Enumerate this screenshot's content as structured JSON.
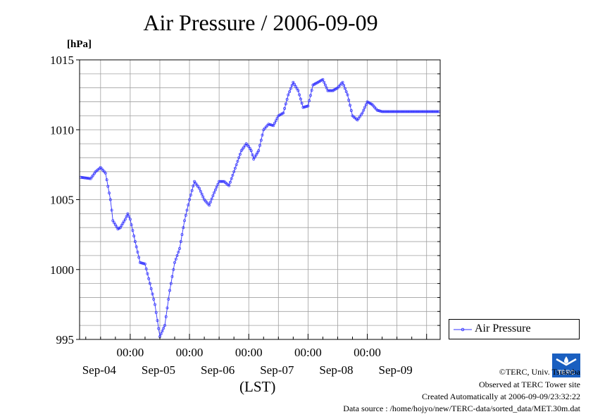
{
  "title": "Air Pressure / 2006-09-09",
  "y_unit": "[hPa]",
  "x_axis_label": "(LST)",
  "legend": {
    "label": "Air Pressure",
    "placement": "right"
  },
  "credits": {
    "copyright": "©TERC, Univ. Tsukuba",
    "observed": "Observed at TERC Tower site",
    "created": "Created Automatically at 2006-09-09/23:32:22",
    "source": "Data source : /home/hojyo/new/TERC-data/sorted_data/MET.30m.dat"
  },
  "logo": {
    "text": "TERC",
    "color": "#1a5fc0"
  },
  "chart_data": {
    "type": "line",
    "title": "Air Pressure / 2006-09-09",
    "ylabel": "[hPa]",
    "xlabel": "(LST)",
    "ylim": [
      995,
      1015
    ],
    "yticks": [
      995,
      1000,
      1005,
      1010,
      1015
    ],
    "xlim_hours": [
      -20.5,
      125.5
    ],
    "time_ticks": [
      "00:00",
      "00:00",
      "00:00",
      "00:00",
      "00:00"
    ],
    "day_labels": [
      "Sep-04",
      "Sep-05",
      "Sep-06",
      "Sep-07",
      "Sep-08",
      "Sep-09"
    ],
    "grid": true,
    "line_color": "#3333ff",
    "series": [
      {
        "name": "Air Pressure",
        "hours": [
          -20,
          -16,
          -14,
          -12,
          -10,
          -8,
          -7,
          -5,
          -4,
          -3,
          -2,
          -1,
          0,
          2,
          4,
          6,
          8,
          10,
          12,
          14,
          16,
          18,
          20,
          22,
          24,
          26,
          28,
          30,
          32,
          34,
          36,
          38,
          40,
          42,
          44,
          45,
          47,
          48,
          49,
          50,
          52,
          54,
          56,
          58,
          60,
          62,
          64,
          66,
          68,
          70,
          72,
          74,
          76,
          78,
          80,
          82,
          84,
          86,
          88,
          90,
          92,
          94,
          96,
          98,
          100,
          102,
          104,
          106,
          108,
          110,
          112,
          114,
          116,
          118,
          120,
          122,
          124,
          125
        ],
        "values": [
          1006.6,
          1006.5,
          1007.0,
          1007.3,
          1006.9,
          1005.0,
          1003.5,
          1002.9,
          1003.0,
          1003.3,
          1003.6,
          1004.0,
          1003.6,
          1002.0,
          1000.5,
          1000.4,
          999.0,
          997.5,
          995.2,
          996.0,
          998.5,
          1000.5,
          1001.5,
          1003.5,
          1005.0,
          1006.3,
          1005.8,
          1005.0,
          1004.6,
          1005.5,
          1006.3,
          1006.3,
          1006.0,
          1007.0,
          1008.0,
          1008.5,
          1009.0,
          1008.8,
          1008.5,
          1007.9,
          1008.5,
          1010.0,
          1010.4,
          1010.3,
          1011.0,
          1011.2,
          1012.5,
          1013.4,
          1012.8,
          1011.6,
          1011.7,
          1013.2,
          1013.4,
          1013.6,
          1012.8,
          1012.8,
          1013.0,
          1013.4,
          1012.5,
          1011.0,
          1010.7,
          1011.2,
          1012.0,
          1011.8,
          1011.4,
          1011.3,
          1011.3,
          1011.3,
          1011.3,
          1011.3,
          1011.3,
          1011.3,
          1011.3,
          1011.3,
          1011.3,
          1011.3,
          1011.3,
          1011.3
        ]
      }
    ]
  }
}
